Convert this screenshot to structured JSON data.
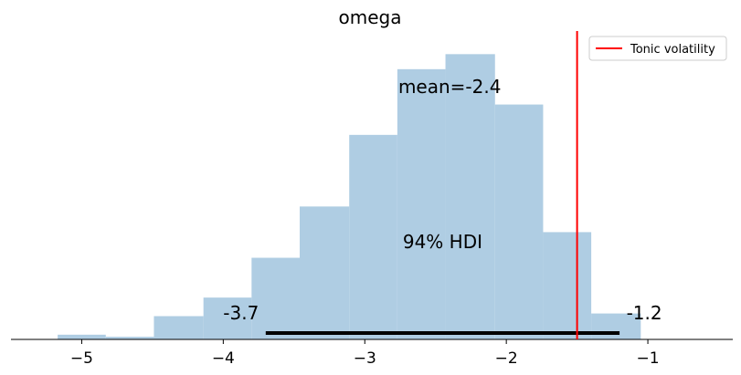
{
  "chart_data": {
    "type": "bar",
    "title": "omega",
    "xlabel": "",
    "ylabel": "",
    "xlim": [
      -5.5,
      -0.4
    ],
    "ylim": [
      0,
      1
    ],
    "x_ticks": [
      -5,
      -4,
      -3,
      -2,
      -1
    ],
    "x_tick_labels": [
      "−5",
      "−4",
      "−3",
      "−2",
      "−1"
    ],
    "grid": false,
    "bar_color": "#afcde3",
    "bins": [
      {
        "start": -5.17,
        "end": -4.83,
        "value": 0.016
      },
      {
        "start": -4.83,
        "end": -4.49,
        "value": 0.009
      },
      {
        "start": -4.49,
        "end": -4.14,
        "value": 0.079
      },
      {
        "start": -4.14,
        "end": -3.8,
        "value": 0.142
      },
      {
        "start": -3.8,
        "end": -3.46,
        "value": 0.277
      },
      {
        "start": -3.46,
        "end": -3.11,
        "value": 0.451
      },
      {
        "start": -3.11,
        "end": -2.77,
        "value": 0.694
      },
      {
        "start": -2.77,
        "end": -2.43,
        "value": 0.917
      },
      {
        "start": -2.43,
        "end": -2.08,
        "value": 0.968
      },
      {
        "start": -2.08,
        "end": -1.74,
        "value": 0.797
      },
      {
        "start": -1.74,
        "end": -1.4,
        "value": 0.364
      },
      {
        "start": -1.4,
        "end": -1.05,
        "value": 0.088
      }
    ],
    "mean_label": "mean=-2.4",
    "mean": -2.4,
    "hdi_label": "94% HDI",
    "hdi_low": -3.7,
    "hdi_high": -1.2,
    "hdi_low_label": "-3.7",
    "hdi_high_label": "-1.2",
    "reference_line": {
      "x": -1.5,
      "color": "#ff0000",
      "name": "Tonic volatility"
    },
    "legend": {
      "position": "top-right",
      "entries": [
        "Tonic volatility"
      ]
    }
  }
}
